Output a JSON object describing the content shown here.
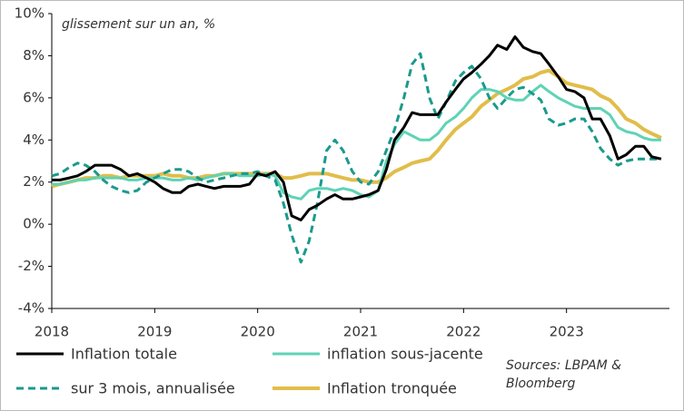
{
  "chart_data": {
    "type": "line",
    "title": "glissement sur un an, %",
    "source": [
      "Sources: LBPAM &",
      "Bloomberg"
    ],
    "x": [
      2018,
      2018.08,
      2018.17,
      2018.25,
      2018.33,
      2018.42,
      2018.5,
      2018.58,
      2018.67,
      2018.75,
      2018.83,
      2018.92,
      2019,
      2019.08,
      2019.17,
      2019.25,
      2019.33,
      2019.42,
      2019.5,
      2019.58,
      2019.67,
      2019.75,
      2019.83,
      2019.92,
      2020,
      2020.08,
      2020.17,
      2020.25,
      2020.33,
      2020.42,
      2020.5,
      2020.58,
      2020.67,
      2020.75,
      2020.83,
      2020.92,
      2021,
      2021.08,
      2021.17,
      2021.25,
      2021.33,
      2021.42,
      2021.5,
      2021.58,
      2021.67,
      2021.75,
      2021.83,
      2021.92,
      2022,
      2022.08,
      2022.17,
      2022.25,
      2022.33,
      2022.42,
      2022.5,
      2022.58,
      2022.67,
      2022.75,
      2022.83,
      2022.92,
      2023,
      2023.08,
      2023.17,
      2023.25,
      2023.33,
      2023.42,
      2023.5,
      2023.58,
      2023.67,
      2023.75,
      2023.83,
      2023.92
    ],
    "series": [
      {
        "name": "Inflation totale",
        "color": "#000000",
        "style": "solid",
        "values": [
          2.1,
          2.1,
          2.2,
          2.3,
          2.5,
          2.8,
          2.8,
          2.8,
          2.6,
          2.3,
          2.4,
          2.2,
          2.0,
          1.7,
          1.5,
          1.5,
          1.8,
          1.9,
          1.8,
          1.7,
          1.8,
          1.8,
          1.8,
          1.9,
          2.4,
          2.3,
          2.5,
          2.0,
          0.4,
          0.2,
          0.7,
          0.9,
          1.2,
          1.4,
          1.2,
          1.2,
          1.3,
          1.4,
          1.6,
          2.6,
          4.0,
          4.6,
          5.3,
          5.2,
          5.2,
          5.2,
          5.8,
          6.4,
          6.9,
          7.2,
          7.6,
          8.0,
          8.5,
          8.3,
          8.9,
          8.4,
          8.2,
          8.1,
          7.6,
          7.0,
          6.4,
          6.3,
          6.0,
          5.0,
          5.0,
          4.2,
          3.1,
          3.3,
          3.7,
          3.7,
          3.2,
          3.1
        ]
      },
      {
        "name": "inflation sous-jacente",
        "color": "#5fd3b5",
        "style": "solid",
        "values": [
          1.9,
          1.9,
          2.0,
          2.1,
          2.1,
          2.2,
          2.2,
          2.2,
          2.2,
          2.1,
          2.1,
          2.2,
          2.2,
          2.2,
          2.1,
          2.1,
          2.2,
          2.1,
          2.2,
          2.3,
          2.4,
          2.4,
          2.3,
          2.3,
          2.3,
          2.4,
          2.3,
          1.5,
          1.3,
          1.2,
          1.6,
          1.7,
          1.7,
          1.6,
          1.7,
          1.6,
          1.4,
          1.3,
          1.6,
          3.0,
          3.8,
          4.4,
          4.2,
          4.0,
          4.0,
          4.3,
          4.8,
          5.1,
          5.5,
          6.0,
          6.4,
          6.4,
          6.3,
          6.0,
          5.9,
          5.9,
          6.3,
          6.6,
          6.3,
          6.0,
          5.8,
          5.6,
          5.5,
          5.5,
          5.5,
          5.2,
          4.6,
          4.4,
          4.3,
          4.1,
          4.0,
          4.0
        ]
      },
      {
        "name": "sur 3 mois, annualisée",
        "color": "#1a9a8c",
        "style": "dashed",
        "values": [
          2.3,
          2.4,
          2.7,
          2.9,
          2.8,
          2.5,
          2.1,
          1.8,
          1.6,
          1.5,
          1.6,
          2.0,
          2.2,
          2.4,
          2.6,
          2.6,
          2.5,
          2.2,
          2.0,
          2.1,
          2.2,
          2.3,
          2.4,
          2.4,
          2.5,
          2.3,
          2.1,
          1.0,
          -0.5,
          -1.8,
          -0.8,
          1.0,
          3.5,
          4.0,
          3.5,
          2.5,
          2.0,
          1.9,
          2.5,
          3.5,
          4.5,
          6.0,
          7.6,
          8.1,
          6.0,
          5.0,
          5.8,
          6.8,
          7.2,
          7.5,
          6.9,
          6.0,
          5.5,
          6.0,
          6.4,
          6.5,
          6.2,
          5.9,
          5.0,
          4.7,
          4.8,
          5.0,
          5.0,
          4.4,
          3.6,
          3.1,
          2.8,
          3.0,
          3.1,
          3.1,
          3.1,
          3.1
        ]
      },
      {
        "name": "Inflation tronquée",
        "color": "#e1bd4a",
        "style": "solid",
        "values": [
          1.8,
          1.9,
          2.0,
          2.1,
          2.2,
          2.2,
          2.3,
          2.3,
          2.2,
          2.3,
          2.3,
          2.3,
          2.3,
          2.4,
          2.3,
          2.3,
          2.2,
          2.2,
          2.3,
          2.3,
          2.4,
          2.4,
          2.4,
          2.4,
          2.4,
          2.4,
          2.4,
          2.2,
          2.2,
          2.3,
          2.4,
          2.4,
          2.4,
          2.3,
          2.2,
          2.1,
          2.1,
          2.0,
          2.0,
          2.2,
          2.5,
          2.7,
          2.9,
          3.0,
          3.1,
          3.5,
          4.0,
          4.5,
          4.8,
          5.1,
          5.6,
          5.9,
          6.2,
          6.4,
          6.6,
          6.9,
          7.0,
          7.2,
          7.3,
          7.0,
          6.7,
          6.6,
          6.5,
          6.4,
          6.1,
          5.9,
          5.5,
          5.0,
          4.8,
          4.5,
          4.3,
          4.1
        ]
      }
    ],
    "xlim": [
      2018,
      2024
    ],
    "xticks": [
      2018,
      2019,
      2020,
      2021,
      2022,
      2023
    ],
    "ylim": [
      -4,
      10
    ],
    "yticks": [
      {
        "value": -4,
        "label": "-4%"
      },
      {
        "value": -2,
        "label": "-2%"
      },
      {
        "value": 0,
        "label": "0%"
      },
      {
        "value": 2,
        "label": "2%"
      },
      {
        "value": 4,
        "label": "4%"
      },
      {
        "value": 6,
        "label": "6%"
      },
      {
        "value": 8,
        "label": "8%"
      },
      {
        "value": 10,
        "label": "10%"
      }
    ],
    "grid": false
  }
}
